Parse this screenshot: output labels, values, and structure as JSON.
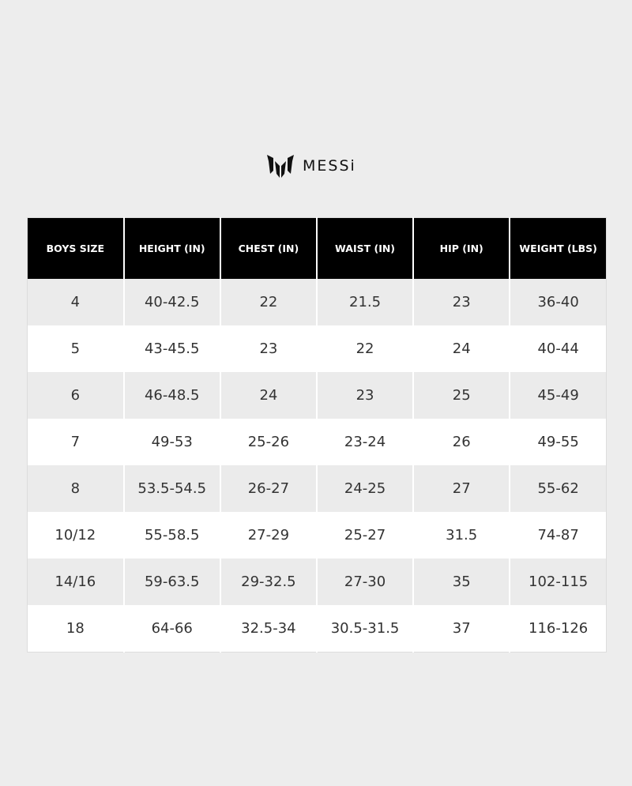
{
  "brand": {
    "name": "MESSi",
    "icon": "messi-logo-icon"
  },
  "table": {
    "headers": [
      "BOYS SIZE",
      "HEIGHT (IN)",
      "CHEST (IN)",
      "WAIST (IN)",
      "HIP (IN)",
      "WEIGHT (LBS)"
    ],
    "rows": [
      [
        "4",
        "40-42.5",
        "22",
        "21.5",
        "23",
        "36-40"
      ],
      [
        "5",
        "43-45.5",
        "23",
        "22",
        "24",
        "40-44"
      ],
      [
        "6",
        "46-48.5",
        "24",
        "23",
        "25",
        "45-49"
      ],
      [
        "7",
        "49-53",
        "25-26",
        "23-24",
        "26",
        "49-55"
      ],
      [
        "8",
        "53.5-54.5",
        "26-27",
        "24-25",
        "27",
        "55-62"
      ],
      [
        "10/12",
        "55-58.5",
        "27-29",
        "25-27",
        "31.5",
        "74-87"
      ],
      [
        "14/16",
        "59-63.5",
        "29-32.5",
        "27-30",
        "35",
        "102-115"
      ],
      [
        "18",
        "64-66",
        "32.5-34",
        "30.5-31.5",
        "37",
        "116-126"
      ]
    ]
  }
}
